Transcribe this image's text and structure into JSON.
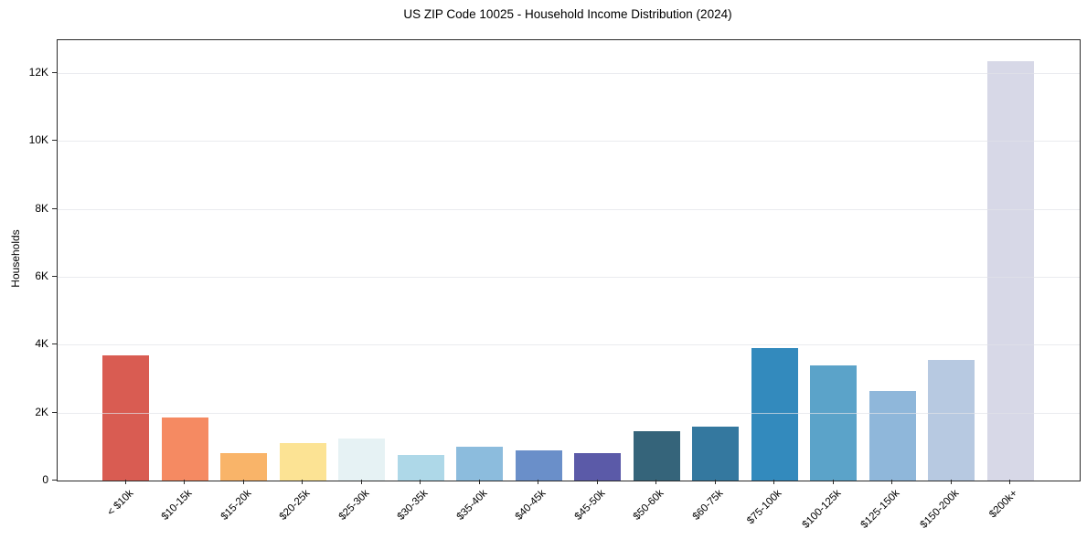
{
  "figure": {
    "title": "US ZIP Code 10025 - Household Income Distribution (2024)"
  },
  "chart_data": {
    "type": "bar",
    "title": "US ZIP Code 10025 - Household Income Distribution (2024)",
    "xlabel": "",
    "ylabel": "Households",
    "categories": [
      "< $10k",
      "$10-15k",
      "$15-20k",
      "$20-25k",
      "$25-30k",
      "$30-35k",
      "$35-40k",
      "$40-45k",
      "$45-50k",
      "$50-60k",
      "$60-75k",
      "$75-100k",
      "$100-125k",
      "$125-150k",
      "$150-200k",
      "$200k+"
    ],
    "values": [
      3700,
      1850,
      800,
      1100,
      1250,
      750,
      1000,
      900,
      800,
      1450,
      1600,
      3900,
      3400,
      2650,
      3550,
      12350
    ],
    "bar_colors": [
      "#d95c52",
      "#f58a62",
      "#f9b469",
      "#fce394",
      "#e6f2f4",
      "#aed8e8",
      "#8cbcdd",
      "#6a8fc9",
      "#5b5aa8",
      "#35647a",
      "#34789f",
      "#338abd",
      "#5ba3c9",
      "#8fb7da",
      "#b7c9e1",
      "#d7d8e7"
    ],
    "ylim": [
      0,
      12970
    ],
    "yticks": [
      {
        "value": 0,
        "label": "0"
      },
      {
        "value": 2000,
        "label": "2K"
      },
      {
        "value": 4000,
        "label": "4K"
      },
      {
        "value": 6000,
        "label": "6K"
      },
      {
        "value": 8000,
        "label": "8K"
      },
      {
        "value": 10000,
        "label": "10K"
      },
      {
        "value": 12000,
        "label": "12K"
      }
    ],
    "grid": "horizontal",
    "legend": "none"
  },
  "colors": {
    "background": "#ffffff",
    "spine": "#2a2a2a",
    "gridline": "#e9e9ed",
    "text": "#000000"
  }
}
